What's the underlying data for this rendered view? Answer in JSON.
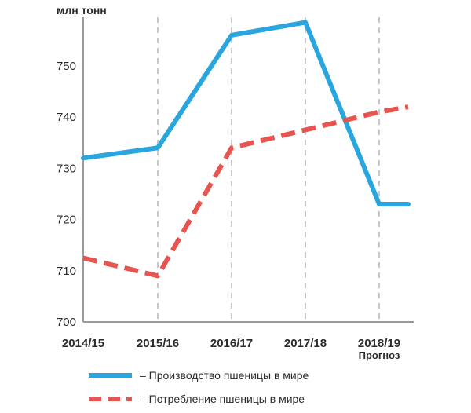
{
  "chart_data": {
    "type": "line",
    "ylabel": "млн тонн",
    "categories": [
      "2014/15",
      "2015/16",
      "2016/17",
      "2017/18",
      "2018/19"
    ],
    "category_sublabels": [
      "",
      "",
      "",
      "",
      "Прогноз"
    ],
    "yticks": [
      700,
      710,
      720,
      730,
      740,
      750
    ],
    "ylim": [
      700,
      760
    ],
    "series": [
      {
        "name": "– Производство пшеницы в мире",
        "color": "#2aa6df",
        "style": "solid",
        "points": [
          {
            "x": "2014/15",
            "y": 732
          },
          {
            "x": "2015/16",
            "y": 734
          },
          {
            "x": "2016/17",
            "y": 756
          },
          {
            "x": "2017/18",
            "y": 758.5
          },
          {
            "x": "2018/19",
            "y": 723
          },
          {
            "x": "2018/19+",
            "y": 723
          }
        ]
      },
      {
        "name": "– Потребление пшеницы в мире",
        "color": "#e85550",
        "style": "dashed",
        "points": [
          {
            "x": "2014/15",
            "y": 712.5
          },
          {
            "x": "2015/16",
            "y": 709
          },
          {
            "x": "2016/17",
            "y": 734
          },
          {
            "x": "2017/18",
            "y": 737.5
          },
          {
            "x": "2018/19",
            "y": 741
          },
          {
            "x": "2018/19+",
            "y": 742
          }
        ]
      }
    ],
    "grid": {
      "x": true,
      "y": false,
      "x_style": "dashed"
    },
    "legend_position": "bottom"
  }
}
